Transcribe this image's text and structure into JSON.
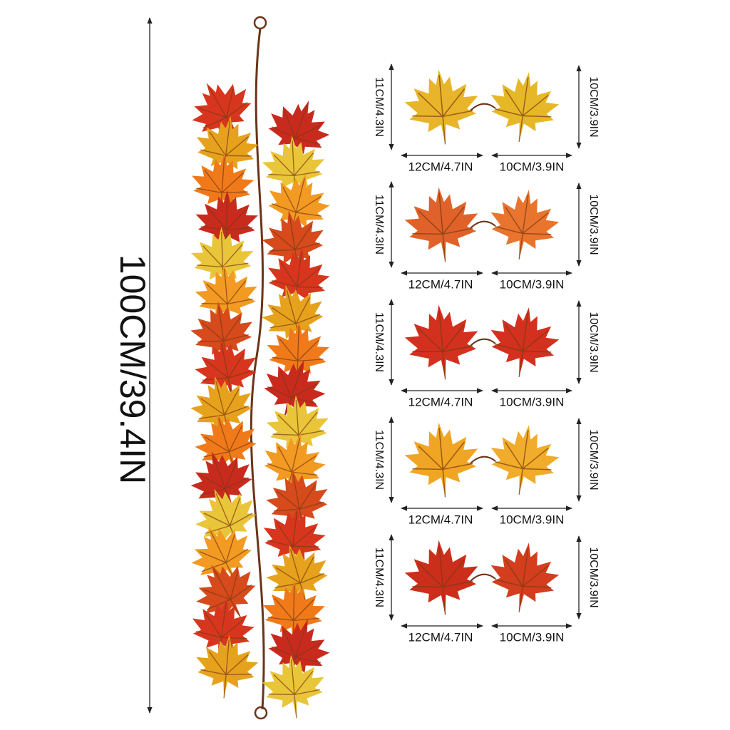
{
  "garland_length": "100CM/39.4IN",
  "leaf_pairs": [
    {
      "left_height": "11CM/4.3IN",
      "right_height": "10CM/3.9IN",
      "left_width": "12CM/4.7IN",
      "right_width": "10CM/3.9IN"
    },
    {
      "left_height": "11CM/4.3IN",
      "right_height": "10CM/3.9IN",
      "left_width": "12CM/4.7IN",
      "right_width": "10CM/3.9IN"
    },
    {
      "left_height": "11CM/4.3IN",
      "right_height": "10CM/3.9IN",
      "left_width": "12CM/4.7IN",
      "right_width": "10CM/3.9IN"
    },
    {
      "left_height": "11CM/4.3IN",
      "right_height": "10CM/3.9IN",
      "left_width": "12CM/4.7IN",
      "right_width": "10CM/3.9IN"
    },
    {
      "left_height": "11CM/4.3IN",
      "right_height": "10CM/3.9IN",
      "left_width": "12CM/4.7IN",
      "right_width": "10CM/3.9IN"
    }
  ]
}
